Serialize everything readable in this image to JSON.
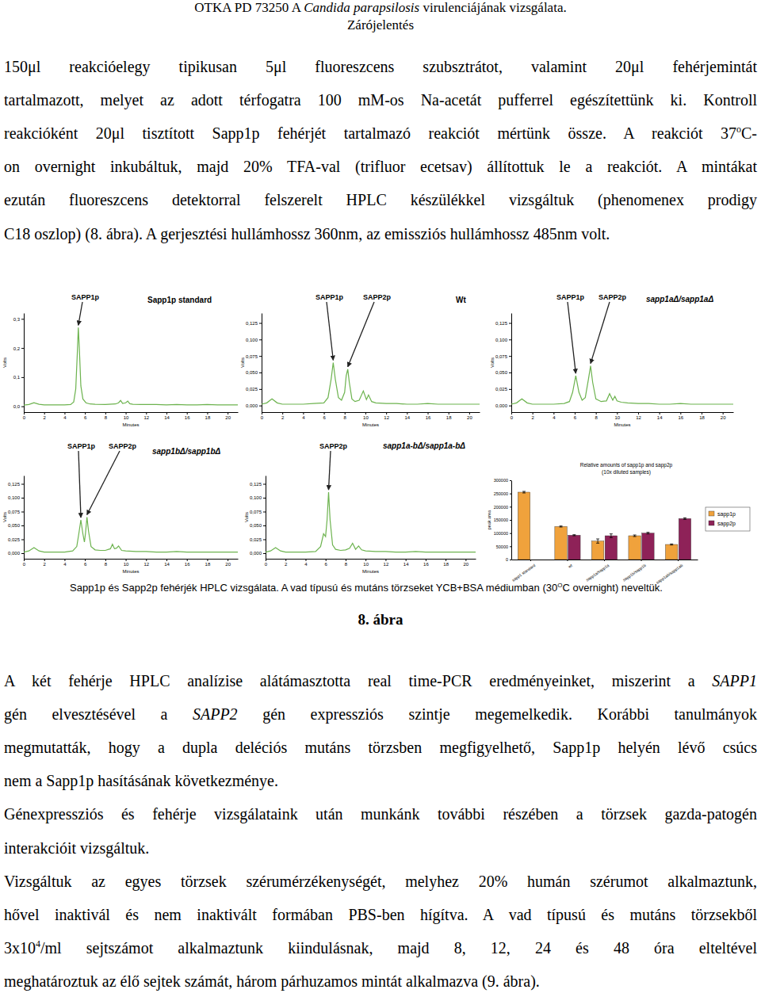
{
  "header": {
    "title": [
      {
        "text": "OTKA PD 73250 A "
      },
      {
        "text": "Candida parapsilosis",
        "italic": true
      },
      {
        "text": " virulenciájának vizsgálata."
      }
    ],
    "subtitle": "Zárójelentés"
  },
  "text_top": [
    [
      [
        {
          "text": "150μl reakcióelegy tipikusan 5μl fluoreszcens szubsztrátot, valamint 20μl fehérjemintát"
        }
      ],
      [
        {
          "text": "tartalmazott, melyet az adott térfogatra 100 mM-os Na-acetát pufferrel egészítettünk ki. Kontroll"
        }
      ],
      [
        {
          "text": "reakcióként 20μl tisztított Sapp1p fehérjét tartalmazó reakciót mértünk össze. A reakciót 37"
        },
        {
          "text": "o",
          "sup": true
        },
        {
          "text": "C-"
        }
      ],
      [
        {
          "text": "on overnight inkubáltuk, majd 20% TFA-val (trifluor ecetsav) állítottuk le a reakciót. A mintákat"
        }
      ],
      [
        {
          "text": "ezután fluoreszcens detektorral felszerelt HPLC készülékkel vizsgáltuk (phenomenex prodigy"
        }
      ],
      [
        {
          "text": "C18 oszlop) (8. ábra). A gerjesztési hullámhossz 360nm, az emissziós hullámhossz 485nm volt."
        }
      ]
    ]
  ],
  "figure": {
    "caption": [
      {
        "text": "Sapp1p és Sapp2p fehérjék HPLC vizsgálata. A vad típusú és mutáns törzseket YCB+BSA médiumban (30"
      },
      {
        "text": "O",
        "sup": true
      },
      {
        "text": "C overnight) neveltük."
      }
    ],
    "label": "8. ábra"
  },
  "text_bottom": [
    [
      [
        {
          "text": "A két fehérje HPLC analízise alátámasztotta real time-PCR eredményeinket, miszerint a "
        },
        {
          "text": "SAPP1",
          "italic": true
        }
      ],
      [
        {
          "text": "gén elvesztésével a "
        },
        {
          "text": "SAPP2",
          "italic": true
        },
        {
          "text": " gén expressziós szintje megemelkedik. Korábbi tanulmányok"
        }
      ],
      [
        {
          "text": "megmutatták, hogy a dupla deléciós mutáns törzsben megfigyelhető, Sapp1p helyén lévő csúcs"
        }
      ],
      [
        {
          "text": "nem a Sapp1p hasításának következménye."
        }
      ]
    ],
    [
      [
        {
          "text": "Génexpressziós és fehérje vizsgálataink után munkánk további részében a törzsek gazda-patogén"
        }
      ],
      [
        {
          "text": "interakcióit vizsgáltuk."
        }
      ]
    ],
    [
      [
        {
          "text": "Vizsgáltuk az egyes törzsek szérumérzékenységét, melyhez 20% humán szérumot alkalmaztunk,"
        }
      ],
      [
        {
          "text": "hővel inaktivál és nem inaktivált formában PBS-ben hígítva. A vad típusú és mutáns törzsekből"
        }
      ],
      [
        {
          "text": "3x10"
        },
        {
          "text": "4",
          "sup": true
        },
        {
          "text": "/ml sejtszámot alkalmaztunk kiindulásnak, majd 8, 12, 24 és 48 óra elteltével"
        }
      ],
      [
        {
          "text": "meghatároztuk az élő sejtek számát, három párhuzamos mintát alkalmazva (9. ábra)."
        }
      ]
    ]
  ],
  "chart_data": [
    {
      "type": "line",
      "title": "Sapp1p standard",
      "x_label": "Minutes",
      "y_label": "Volts",
      "x": [
        0,
        0.5,
        1,
        1.5,
        2,
        3,
        4,
        4.6,
        4.9,
        5.1,
        5.25,
        5.35,
        5.45,
        5.6,
        5.8,
        6.1,
        6.5,
        7,
        8,
        9,
        9.3,
        9.5,
        9.7,
        10,
        10.2,
        10.4,
        10.7,
        11.5,
        12,
        13,
        14,
        15,
        16,
        17,
        18,
        19,
        20,
        21
      ],
      "series": [
        {
          "color": "#6db34f",
          "values": [
            0.004,
            0.006,
            0.012,
            0.007,
            0.005,
            0.005,
            0.005,
            0.006,
            0.015,
            0.06,
            0.18,
            0.27,
            0.2,
            0.07,
            0.025,
            0.012,
            0.008,
            0.007,
            0.006,
            0.008,
            0.012,
            0.02,
            0.01,
            0.012,
            0.018,
            0.009,
            0.007,
            0.006,
            0.006,
            0.006,
            0.005,
            0.006,
            0.005,
            0.005,
            0.006,
            0.005,
            0.005,
            0.005
          ]
        }
      ],
      "xlim": [
        0,
        21
      ],
      "xticks": [
        0,
        2,
        4,
        6,
        8,
        10,
        12,
        14,
        16,
        18,
        20
      ],
      "ylim": [
        -0.02,
        0.32
      ],
      "yticks": [
        {
          "value": 0,
          "label": "0,0"
        },
        {
          "value": 0.1,
          "label": "0,1"
        },
        {
          "value": 0.2,
          "label": "0,2"
        },
        {
          "value": 0.3,
          "label": "0,3"
        }
      ],
      "annotations": [
        {
          "text": "SAPP1p",
          "x": 5.35
        }
      ]
    },
    {
      "type": "line",
      "title": "Wt",
      "x_label": "Minutes",
      "y_label": "Volts",
      "x": [
        0,
        0.5,
        1,
        1.5,
        2,
        3,
        4,
        5,
        6,
        6.4,
        6.7,
        6.9,
        7.1,
        7.4,
        7.7,
        8,
        8.15,
        8.3,
        8.45,
        8.7,
        9,
        9.4,
        9.8,
        10.1,
        10.3,
        10.6,
        11,
        12,
        13,
        14,
        15,
        16,
        17,
        18,
        19,
        20,
        21
      ],
      "series": [
        {
          "color": "#6db34f",
          "values": [
            0.002,
            0.004,
            0.01,
            0.004,
            0.002,
            0.002,
            0.002,
            0.003,
            0.004,
            0.012,
            0.04,
            0.065,
            0.04,
            0.012,
            0.008,
            0.02,
            0.045,
            0.055,
            0.035,
            0.01,
            0.006,
            0.008,
            0.022,
            0.009,
            0.016,
            0.006,
            0.004,
            0.003,
            0.003,
            0.002,
            0.002,
            0.003,
            0.002,
            0.002,
            0.002,
            0.002,
            0.002
          ]
        }
      ],
      "xlim": [
        0,
        21
      ],
      "xticks": [
        0,
        2,
        4,
        6,
        8,
        10,
        12,
        14,
        16,
        18,
        20
      ],
      "ylim": [
        -0.01,
        0.14
      ],
      "yticks": [
        {
          "value": 0,
          "label": "0,000"
        },
        {
          "value": 0.025,
          "label": "0,025"
        },
        {
          "value": 0.05,
          "label": "0,050"
        },
        {
          "value": 0.075,
          "label": "0,075"
        },
        {
          "value": 0.1,
          "label": "0,100"
        },
        {
          "value": 0.125,
          "label": "0,125"
        }
      ],
      "annotations": [
        {
          "text": "SAPP1p",
          "x": 6.9
        },
        {
          "text": "SAPP2p",
          "x": 8.3
        }
      ]
    },
    {
      "type": "line",
      "title": "sapp1aΔ/sapp1aΔ",
      "x_label": "Minutes",
      "y_label": "Volts",
      "x": [
        0,
        0.5,
        1,
        1.5,
        2,
        3,
        4,
        5,
        5.5,
        5.8,
        6.1,
        6.4,
        6.7,
        7,
        7.3,
        7.5,
        7.7,
        8,
        8.5,
        9,
        9.3,
        9.6,
        9.8,
        10,
        10.4,
        11,
        12,
        13,
        14,
        15,
        16,
        17,
        18,
        19,
        20,
        21
      ],
      "series": [
        {
          "color": "#6db34f",
          "values": [
            0.002,
            0.004,
            0.01,
            0.004,
            0.002,
            0.002,
            0.002,
            0.003,
            0.006,
            0.02,
            0.045,
            0.02,
            0.008,
            0.012,
            0.04,
            0.06,
            0.035,
            0.01,
            0.006,
            0.007,
            0.018,
            0.008,
            0.014,
            0.007,
            0.005,
            0.004,
            0.003,
            0.003,
            0.002,
            0.002,
            0.003,
            0.002,
            0.002,
            0.002,
            0.002,
            0.002
          ]
        }
      ],
      "xlim": [
        0,
        21
      ],
      "xticks": [
        0,
        2,
        4,
        6,
        8,
        10,
        12,
        14,
        16,
        18,
        20
      ],
      "ylim": [
        -0.01,
        0.14
      ],
      "yticks": [
        {
          "value": 0,
          "label": "0,000"
        },
        {
          "value": 0.025,
          "label": "0,025"
        },
        {
          "value": 0.05,
          "label": "0,050"
        },
        {
          "value": 0.075,
          "label": "0,075"
        },
        {
          "value": 0.1,
          "label": "0,100"
        },
        {
          "value": 0.125,
          "label": "0,125"
        }
      ],
      "annotations": [
        {
          "text": "SAPP1p",
          "x": 6.1
        },
        {
          "text": "SAPP2p",
          "x": 7.5
        }
      ]
    },
    {
      "type": "line",
      "title": "sapp1bΔ/sapp1bΔ",
      "x_label": "Minutes",
      "y_label": "Volts",
      "x": [
        0,
        0.5,
        1,
        1.5,
        2,
        3,
        4,
        4.8,
        5.2,
        5.4,
        5.6,
        5.8,
        5.95,
        6.05,
        6.2,
        6.35,
        6.6,
        7,
        7.5,
        8,
        8.5,
        8.7,
        8.9,
        9.1,
        9.3,
        9.6,
        10,
        11,
        12,
        13,
        14,
        15,
        16,
        17,
        18,
        19,
        20,
        21
      ],
      "series": [
        {
          "color": "#6db34f",
          "values": [
            0.002,
            0.004,
            0.01,
            0.004,
            0.002,
            0.002,
            0.002,
            0.004,
            0.012,
            0.035,
            0.06,
            0.035,
            0.02,
            0.035,
            0.065,
            0.04,
            0.012,
            0.006,
            0.005,
            0.005,
            0.008,
            0.016,
            0.008,
            0.009,
            0.013,
            0.005,
            0.004,
            0.003,
            0.003,
            0.002,
            0.002,
            0.003,
            0.002,
            0.002,
            0.002,
            0.002,
            0.002,
            0.002
          ]
        }
      ],
      "xlim": [
        0,
        21
      ],
      "xticks": [
        0,
        2,
        4,
        6,
        8,
        10,
        12,
        14,
        16,
        18,
        20
      ],
      "ylim": [
        -0.01,
        0.14
      ],
      "yticks": [
        {
          "value": 0,
          "label": "0,000"
        },
        {
          "value": 0.025,
          "label": "0,025"
        },
        {
          "value": 0.05,
          "label": "0,050"
        },
        {
          "value": 0.075,
          "label": "0,075"
        },
        {
          "value": 0.1,
          "label": "0,100"
        },
        {
          "value": 0.125,
          "label": "0,125"
        }
      ],
      "annotations": [
        {
          "text": "SAPP1p",
          "x": 5.6
        },
        {
          "text": "SAPP2p",
          "x": 6.2
        }
      ]
    },
    {
      "type": "line",
      "title": "sapp1a-bΔ/sapp1a-bΔ",
      "x_label": "Minutes",
      "y_label": "Volts",
      "x": [
        0,
        0.5,
        1,
        1.5,
        2,
        3,
        4,
        5,
        5.5,
        5.8,
        6,
        6.15,
        6.3,
        6.45,
        6.7,
        7,
        7.5,
        8,
        8.4,
        8.7,
        9,
        9.3,
        9.6,
        10,
        11,
        12,
        13,
        14,
        15,
        16,
        17,
        18,
        19,
        20,
        21
      ],
      "series": [
        {
          "color": "#6db34f",
          "values": [
            0.002,
            0.004,
            0.01,
            0.004,
            0.002,
            0.002,
            0.002,
            0.003,
            0.012,
            0.035,
            0.03,
            0.06,
            0.11,
            0.06,
            0.015,
            0.007,
            0.005,
            0.006,
            0.009,
            0.018,
            0.007,
            0.013,
            0.006,
            0.004,
            0.003,
            0.003,
            0.002,
            0.002,
            0.003,
            0.002,
            0.002,
            0.002,
            0.002,
            0.002,
            0.002
          ]
        }
      ],
      "xlim": [
        0,
        21
      ],
      "xticks": [
        0,
        2,
        4,
        6,
        8,
        10,
        12,
        14,
        16,
        18,
        20
      ],
      "ylim": [
        -0.01,
        0.14
      ],
      "yticks": [
        {
          "value": 0,
          "label": "0,000"
        },
        {
          "value": 0.025,
          "label": "0,025"
        },
        {
          "value": 0.05,
          "label": "0,050"
        },
        {
          "value": 0.075,
          "label": "0,075"
        },
        {
          "value": 0.1,
          "label": "0,100"
        },
        {
          "value": 0.125,
          "label": "0,125"
        }
      ],
      "annotations": [
        {
          "text": "SAPP2p",
          "x": 6.3
        }
      ]
    },
    {
      "type": "bar",
      "title": "Relative amounts of sapp1p and sapp2p",
      "subtitle": "(10x diluted samples)",
      "y_label": "peak area",
      "categories": [
        "sapp1 standard",
        "wt",
        "sapp1a/sapp1a",
        "sapp1b/sapp1b",
        "sapp1ab/sapp1ab"
      ],
      "series": [
        {
          "name": "sapp1p",
          "color": "#f0a23c",
          "values": [
            255000,
            125000,
            70000,
            90000,
            57000
          ],
          "errors": [
            3000,
            2000,
            8000,
            3000,
            2000
          ]
        },
        {
          "name": "sapp2p",
          "color": "#8e2258",
          "values": [
            null,
            92000,
            90000,
            100000,
            155000
          ],
          "errors": [
            null,
            2000,
            7000,
            3000,
            3000
          ]
        }
      ],
      "ylim": [
        0,
        300000
      ],
      "yticks": [
        0,
        50000,
        100000,
        150000,
        200000,
        250000,
        300000
      ],
      "legend": "right"
    }
  ]
}
